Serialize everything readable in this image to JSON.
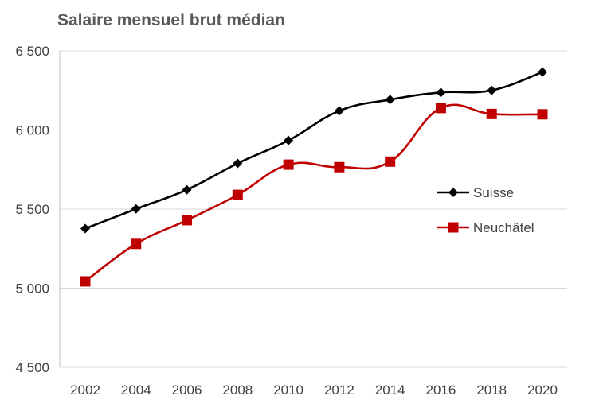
{
  "chart_data": {
    "type": "line",
    "title": "Salaire mensuel brut médian",
    "xlabel": "",
    "ylabel": "",
    "x": [
      2002,
      2004,
      2006,
      2008,
      2010,
      2012,
      2014,
      2016,
      2018,
      2020
    ],
    "x_tick_labels": [
      "2002",
      "2004",
      "2006",
      "2008",
      "2010",
      "2012",
      "2014",
      "2016",
      "2018",
      "2020"
    ],
    "ylim": [
      4500,
      6500
    ],
    "y_ticks": [
      4500,
      5000,
      5500,
      6000,
      6500
    ],
    "y_tick_labels": [
      "4 500",
      "5 000",
      "5 500",
      "6 000",
      "6 500"
    ],
    "grid": "horizontal",
    "legend_position": "right",
    "series": [
      {
        "name": "Suisse",
        "color": "#000000",
        "marker": "diamond",
        "values": [
          5377,
          5501,
          5622,
          5789,
          5934,
          6121,
          6192,
          6237,
          6250,
          6366
        ]
      },
      {
        "name": "Neuchâtel",
        "color": "#c00000",
        "marker": "square",
        "values": [
          5043,
          5280,
          5430,
          5590,
          5781,
          5765,
          5800,
          6139,
          6101,
          6099
        ]
      }
    ]
  }
}
